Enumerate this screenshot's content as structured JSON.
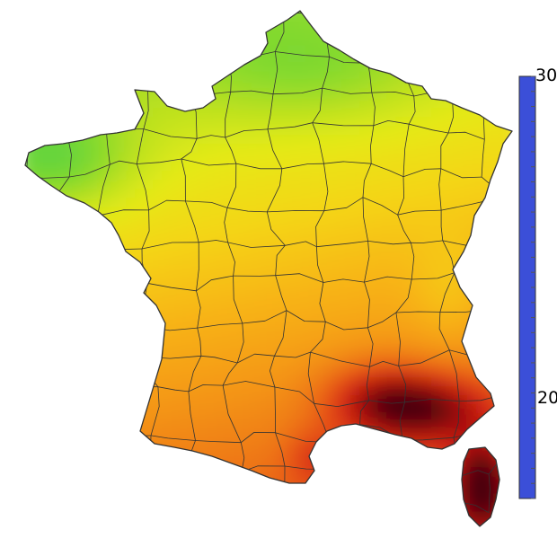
{
  "map": {
    "region": "France",
    "departments_visible": true,
    "background": "#ffffff",
    "border_color": "#333333"
  },
  "legend": {
    "type": "colorbar",
    "min_value": 16,
    "max_value": 30,
    "tick_step": 0.5,
    "labels": [
      "30",
      "20"
    ],
    "label_values": [
      30,
      20
    ],
    "colors": [
      {
        "value": 16,
        "color": "#3b4fd8"
      },
      {
        "value": 17,
        "color": "#4aa8d8"
      },
      {
        "value": 18,
        "color": "#3ec9b0"
      },
      {
        "value": 19,
        "color": "#4ad04a"
      },
      {
        "value": 20,
        "color": "#7cd830"
      },
      {
        "value": 21,
        "color": "#b8e020"
      },
      {
        "value": 22,
        "color": "#e4ea18"
      },
      {
        "value": 23,
        "color": "#f4d614"
      },
      {
        "value": 24,
        "color": "#f8b414"
      },
      {
        "value": 25,
        "color": "#f49616"
      },
      {
        "value": 26,
        "color": "#ee7416"
      },
      {
        "value": 27,
        "color": "#e44a14"
      },
      {
        "value": 28,
        "color": "#cc1a12"
      },
      {
        "value": 29,
        "color": "#96080c"
      },
      {
        "value": 30,
        "color": "#4a0608"
      }
    ]
  }
}
